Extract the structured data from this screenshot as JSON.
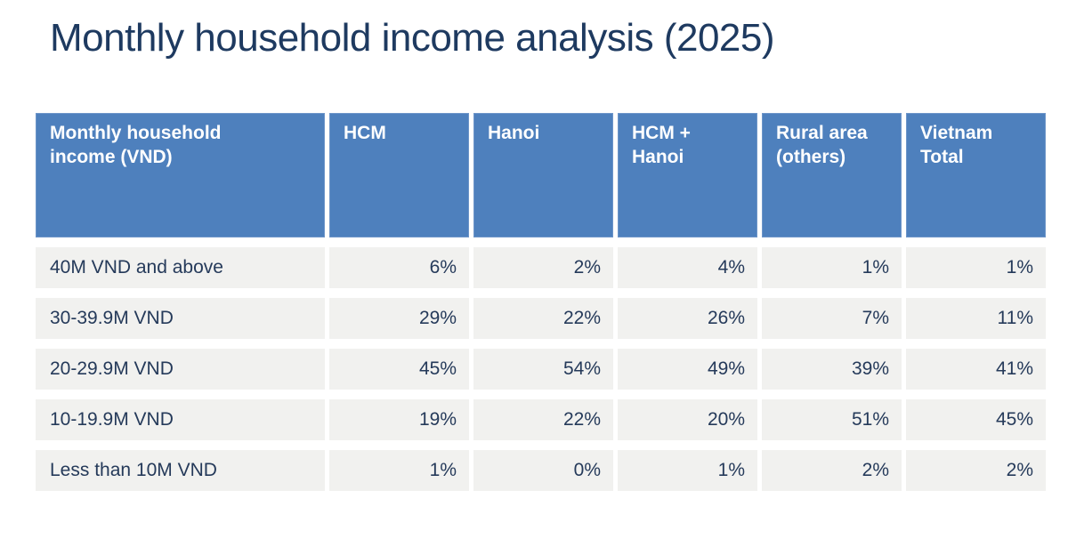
{
  "colors": {
    "header_bg": "#4e80bd",
    "header_border": "#6e96c9",
    "row_bg": "#f1f1ef",
    "title_text": "#1e3a60",
    "cell_text": "#253a5a",
    "header_text": "#ffffff"
  },
  "chart_data": {
    "type": "table",
    "title": "Monthly household income analysis (2025)",
    "columns": [
      "Monthly household income (VND)",
      "HCM",
      "Hanoi",
      "HCM + Hanoi",
      "Rural area (others)",
      "Vietnam Total"
    ],
    "rows": [
      {
        "label": "40M VND and above",
        "values": [
          "6%",
          "2%",
          "4%",
          "1%",
          "1%"
        ]
      },
      {
        "label": "30-39.9M VND",
        "values": [
          "29%",
          "22%",
          "26%",
          "7%",
          "11%"
        ]
      },
      {
        "label": "20-29.9M VND",
        "values": [
          "45%",
          "54%",
          "49%",
          "39%",
          "41%"
        ]
      },
      {
        "label": "10-19.9M VND",
        "values": [
          "19%",
          "22%",
          "20%",
          "51%",
          "45%"
        ]
      },
      {
        "label": "Less than 10M VND",
        "values": [
          "1%",
          "0%",
          "1%",
          "2%",
          "2%"
        ]
      }
    ]
  }
}
